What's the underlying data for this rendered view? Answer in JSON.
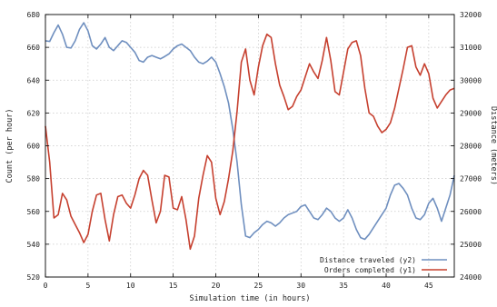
{
  "chart_data": {
    "type": "line",
    "title": "",
    "xlabel": "Simulation time (in hours)",
    "ylabel": "Count (per hour)",
    "y2label": "Distance (meters)",
    "xlim": [
      0,
      48
    ],
    "ylim": [
      520,
      680
    ],
    "y2lim": [
      24000,
      32000
    ],
    "xticks": [
      0,
      5,
      10,
      15,
      20,
      25,
      30,
      35,
      40,
      45
    ],
    "yticks": [
      520,
      540,
      560,
      580,
      600,
      620,
      640,
      660,
      680
    ],
    "y2ticks": [
      24000,
      25000,
      26000,
      27000,
      28000,
      29000,
      30000,
      31000,
      32000
    ],
    "grid": true,
    "legend_position": "bottom-right",
    "series": [
      {
        "name": "Distance traveled (y2)",
        "axis": "y2",
        "color": "#6f8fbf",
        "x": [
          0,
          0.5,
          1,
          1.5,
          2,
          2.5,
          3,
          3.5,
          4,
          4.5,
          5,
          5.5,
          6,
          6.5,
          7,
          7.5,
          8,
          8.5,
          9,
          9.5,
          10,
          10.5,
          11,
          11.5,
          12,
          12.5,
          13,
          13.5,
          14,
          14.5,
          15,
          15.5,
          16,
          16.5,
          17,
          17.5,
          18,
          18.5,
          19,
          19.5,
          20,
          20.5,
          21,
          21.5,
          22,
          22.5,
          23,
          23.5,
          24,
          24.5,
          25,
          25.5,
          26,
          26.5,
          27,
          27.5,
          28,
          28.5,
          29,
          29.5,
          30,
          30.5,
          31,
          31.5,
          32,
          32.5,
          33,
          33.5,
          34,
          34.5,
          35,
          35.5,
          36,
          36.5,
          37,
          37.5,
          38,
          38.5,
          39,
          39.5,
          40,
          40.5,
          41,
          41.5,
          42,
          42.5,
          43,
          43.5,
          44,
          44.5,
          45,
          45.5,
          46,
          46.5,
          47,
          47.5,
          48
        ],
        "values": [
          31200,
          31180,
          31450,
          31680,
          31400,
          31000,
          30980,
          31200,
          31550,
          31750,
          31500,
          31050,
          30950,
          31100,
          31300,
          31000,
          30900,
          31050,
          31200,
          31150,
          31000,
          30850,
          30600,
          30550,
          30700,
          30750,
          30700,
          30650,
          30720,
          30800,
          30950,
          31050,
          31100,
          31000,
          30900,
          30700,
          30550,
          30500,
          30580,
          30700,
          30550,
          30200,
          29800,
          29300,
          28500,
          27500,
          26200,
          25250,
          25200,
          25350,
          25450,
          25600,
          25700,
          25650,
          25550,
          25650,
          25800,
          25900,
          25950,
          26000,
          26150,
          26200,
          26000,
          25800,
          25750,
          25900,
          26100,
          26000,
          25800,
          25700,
          25800,
          26050,
          25800,
          25450,
          25200,
          25150,
          25300,
          25500,
          25700,
          25900,
          26100,
          26500,
          26800,
          26850,
          26700,
          26500,
          26100,
          25800,
          25750,
          25900,
          26250,
          26400,
          26100,
          25700,
          26100,
          26500,
          27100
        ]
      },
      {
        "name": "Orders completed (y1)",
        "axis": "y1",
        "color": "#c6402f",
        "x": [
          0,
          0.5,
          1,
          1.5,
          2,
          2.5,
          3,
          3.5,
          4,
          4.5,
          5,
          5.5,
          6,
          6.5,
          7,
          7.5,
          8,
          8.5,
          9,
          9.5,
          10,
          10.5,
          11,
          11.5,
          12,
          12.5,
          13,
          13.5,
          14,
          14.5,
          15,
          15.5,
          16,
          16.5,
          17,
          17.5,
          18,
          18.5,
          19,
          19.5,
          20,
          20.5,
          21,
          21.5,
          22,
          22.5,
          23,
          23.5,
          24,
          24.5,
          25,
          25.5,
          26,
          26.5,
          27,
          27.5,
          28,
          28.5,
          29,
          29.5,
          30,
          30.5,
          31,
          31.5,
          32,
          32.5,
          33,
          33.5,
          34,
          34.5,
          35,
          35.5,
          36,
          36.5,
          37,
          37.5,
          38,
          38.5,
          39,
          39.5,
          40,
          40.5,
          41,
          41.5,
          42,
          42.5,
          43,
          43.5,
          44,
          44.5,
          45,
          45.5,
          46,
          46.5,
          47,
          47.5,
          48
        ],
        "values": [
          612,
          590,
          556,
          558,
          571,
          567,
          557,
          552,
          547,
          541,
          546,
          560,
          570,
          571,
          555,
          542,
          558,
          569,
          570,
          565,
          562,
          570,
          580,
          585,
          582,
          567,
          553,
          560,
          582,
          581,
          562,
          561,
          569,
          555,
          537,
          545,
          568,
          582,
          594,
          590,
          568,
          558,
          566,
          580,
          597,
          621,
          651,
          659,
          640,
          631,
          648,
          661,
          668,
          666,
          650,
          637,
          630,
          622,
          624,
          630,
          634,
          642,
          650,
          645,
          641,
          652,
          666,
          652,
          633,
          631,
          645,
          659,
          663,
          664,
          655,
          635,
          620,
          618,
          612,
          608,
          610,
          614,
          623,
          635,
          647,
          660,
          661,
          648,
          643,
          650,
          644,
          629,
          623,
          627,
          631,
          634,
          635
        ]
      }
    ]
  }
}
